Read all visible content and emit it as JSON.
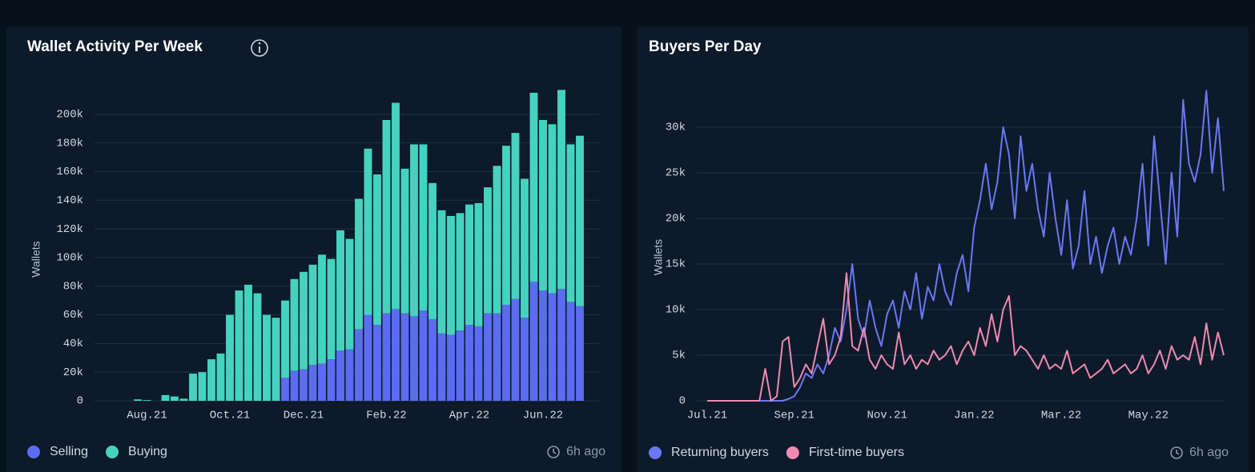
{
  "chart_data": [
    {
      "type": "bar",
      "stacked": true,
      "title": "Wallet Activity Per Week",
      "ylabel": "Wallets",
      "footer_note": "6h ago",
      "legend": "bottom",
      "grid": true,
      "categories": [
        null,
        "Aug.21",
        null,
        null,
        null,
        null,
        null,
        null,
        null,
        null,
        "Oct.21",
        null,
        null,
        null,
        null,
        null,
        null,
        null,
        "Dec.21",
        null,
        null,
        null,
        null,
        null,
        null,
        null,
        null,
        "Feb.22",
        null,
        null,
        null,
        null,
        null,
        null,
        null,
        null,
        "Apr.22",
        null,
        null,
        null,
        null,
        null,
        null,
        null,
        "Jun.22",
        null,
        null,
        null,
        null
      ],
      "series": [
        {
          "name": "Selling",
          "color": "#5b6cf2",
          "values": [
            0,
            0,
            0,
            0,
            0,
            0,
            0,
            0,
            0,
            0,
            0,
            0,
            0,
            0,
            0,
            0,
            16000,
            21000,
            22000,
            25000,
            26000,
            29000,
            35000,
            36000,
            50000,
            60000,
            53000,
            61000,
            64000,
            61000,
            59000,
            63000,
            57000,
            47000,
            46000,
            49000,
            53000,
            52000,
            61000,
            61000,
            67000,
            71000,
            58000,
            83000,
            77000,
            75000,
            78000,
            69000,
            66000
          ]
        },
        {
          "name": "Buying",
          "color": "#45d3bf",
          "values": [
            1000,
            500,
            0,
            4000,
            3000,
            1500,
            19000,
            20000,
            29000,
            33000,
            60000,
            77000,
            81000,
            75000,
            60000,
            58000,
            54000,
            64000,
            68000,
            70000,
            76000,
            70000,
            84000,
            77000,
            91000,
            116000,
            105000,
            135000,
            144000,
            101000,
            120000,
            116000,
            95000,
            86000,
            83000,
            82000,
            84000,
            86000,
            88000,
            103000,
            111000,
            116000,
            97000,
            132000,
            119000,
            118000,
            139000,
            110000,
            119000
          ]
        }
      ],
      "ylim": [
        0,
        220000
      ],
      "yticks": [
        0,
        {
          "value": 20000,
          "label": "20k"
        },
        {
          "value": 40000,
          "label": "40k"
        },
        {
          "value": 60000,
          "label": "60k"
        },
        {
          "value": 80000,
          "label": "80k"
        },
        {
          "value": 100000,
          "label": "100k"
        },
        {
          "value": 120000,
          "label": "120k"
        },
        {
          "value": 140000,
          "label": "140k"
        },
        {
          "value": 160000,
          "label": "160k"
        },
        {
          "value": 180000,
          "label": "180k"
        },
        {
          "value": 200000,
          "label": "200k"
        }
      ]
    },
    {
      "type": "line",
      "title": "Buyers Per Day",
      "ylabel": "Wallets",
      "footer_note": "6h ago",
      "legend": "bottom",
      "grid": true,
      "categories": [
        "Jul.21",
        null,
        null,
        null,
        null,
        null,
        null,
        null,
        null,
        null,
        null,
        null,
        null,
        null,
        null,
        "Sep.21",
        null,
        null,
        null,
        null,
        null,
        null,
        null,
        null,
        null,
        null,
        null,
        null,
        null,
        null,
        null,
        "Nov.21",
        null,
        null,
        null,
        null,
        null,
        null,
        null,
        null,
        null,
        null,
        null,
        null,
        null,
        null,
        "Jan.22",
        null,
        null,
        null,
        null,
        null,
        null,
        null,
        null,
        null,
        null,
        null,
        null,
        null,
        null,
        "Mar.22",
        null,
        null,
        null,
        null,
        null,
        null,
        null,
        null,
        null,
        null,
        null,
        null,
        null,
        null,
        "May.22",
        null,
        null,
        null,
        null,
        null,
        null,
        null,
        null,
        null,
        null,
        null,
        null,
        null
      ],
      "series": [
        {
          "name": "Returning buyers",
          "color": "#6b78f5",
          "values": [
            0,
            0,
            0,
            0,
            0,
            0,
            0,
            0,
            0,
            0,
            0,
            0,
            0,
            0,
            200,
            500,
            1500,
            3000,
            2500,
            4000,
            3000,
            5000,
            8000,
            6500,
            10000,
            15000,
            9000,
            7000,
            11000,
            8000,
            6000,
            9500,
            11000,
            8000,
            12000,
            10000,
            14000,
            9000,
            12500,
            11000,
            15000,
            12000,
            10500,
            14000,
            16000,
            12000,
            19000,
            22000,
            26000,
            21000,
            24000,
            30000,
            27000,
            20000,
            29000,
            23000,
            26000,
            21000,
            18000,
            25000,
            20000,
            16000,
            22000,
            14500,
            17000,
            23000,
            15000,
            18000,
            14000,
            17000,
            19000,
            15000,
            18000,
            16000,
            20000,
            26000,
            17000,
            29000,
            22000,
            15000,
            25000,
            18000,
            33000,
            26000,
            24000,
            27000,
            34000,
            25000,
            31000,
            23000
          ]
        },
        {
          "name": "First-time buyers",
          "color": "#f08bb0",
          "values": [
            0,
            0,
            0,
            0,
            0,
            0,
            0,
            0,
            0,
            0,
            3500,
            0,
            500,
            6500,
            7000,
            1500,
            2500,
            4000,
            3000,
            6000,
            9000,
            4000,
            5000,
            7000,
            14000,
            6000,
            5500,
            8000,
            4500,
            3500,
            5000,
            4000,
            3500,
            7500,
            4000,
            5000,
            3500,
            4500,
            4000,
            5500,
            4500,
            5000,
            6000,
            4000,
            5500,
            6500,
            5000,
            8000,
            6000,
            9500,
            6500,
            10000,
            11500,
            5000,
            6000,
            5500,
            4500,
            3500,
            5000,
            3500,
            4000,
            3500,
            5500,
            3000,
            3500,
            4000,
            2500,
            3000,
            3500,
            4500,
            3000,
            3500,
            4000,
            3000,
            3500,
            5000,
            3000,
            4000,
            5500,
            3500,
            6000,
            4500,
            5000,
            4500,
            7000,
            4000,
            8500,
            4500,
            7500,
            5000
          ]
        }
      ],
      "ylim": [
        0,
        35000
      ],
      "yticks": [
        0,
        {
          "value": 5000,
          "label": "5k"
        },
        {
          "value": 10000,
          "label": "10k"
        },
        {
          "value": 15000,
          "label": "15k"
        },
        {
          "value": 20000,
          "label": "20k"
        },
        {
          "value": 25000,
          "label": "25k"
        },
        {
          "value": 30000,
          "label": "30k"
        }
      ]
    }
  ]
}
